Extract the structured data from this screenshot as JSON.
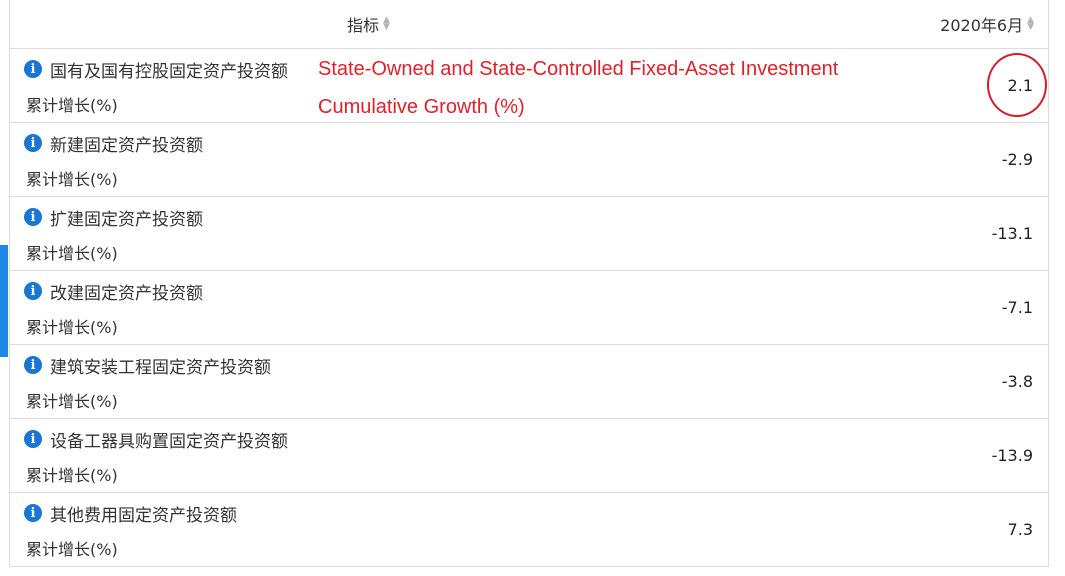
{
  "header": {
    "indicator_label": "指标",
    "period_label": "2020年6月"
  },
  "rows": [
    {
      "name": "国有及国有控股固定资产投资额",
      "metric": "累计增长(%)",
      "value": "2.1"
    },
    {
      "name": "新建固定资产投资额",
      "metric": "累计增长(%)",
      "value": "-2.9"
    },
    {
      "name": "扩建固定资产投资额",
      "metric": "累计增长(%)",
      "value": "-13.1"
    },
    {
      "name": "改建固定资产投资额",
      "metric": "累计增长(%)",
      "value": "-7.1"
    },
    {
      "name": "建筑安装工程固定资产投资额",
      "metric": "累计增长(%)",
      "value": "-3.8"
    },
    {
      "name": "设备工器具购置固定资产投资额",
      "metric": "累计增长(%)",
      "value": "-13.9"
    },
    {
      "name": "其他费用固定资产投资额",
      "metric": "累计增长(%)",
      "value": "7.3"
    }
  ],
  "annotation": {
    "line1": "State-Owned and State-Controlled Fixed-Asset Investment",
    "line2": "Cumulative Growth (%)"
  },
  "colors": {
    "info_icon": "#1976d2",
    "annotation": "#e0202a",
    "left_tab": "#1e88e5"
  },
  "icons": {
    "info": "info-icon",
    "sort": "sort-arrows-icon"
  }
}
